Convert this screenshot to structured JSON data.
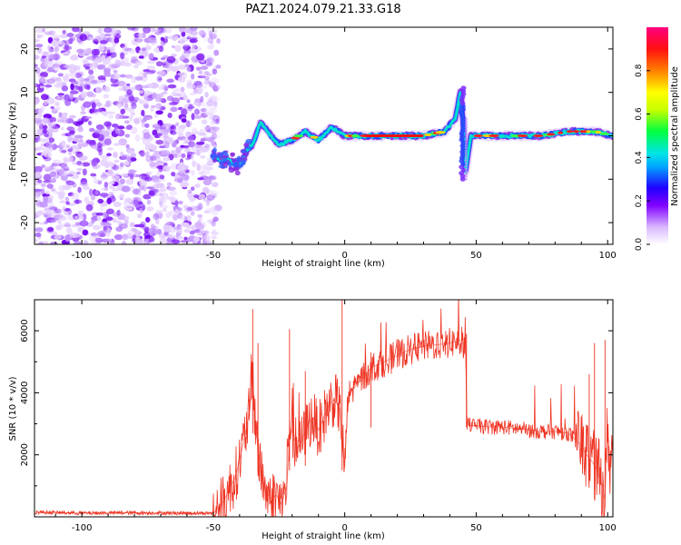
{
  "chart_data": [
    {
      "type": "heatmap",
      "title": "PAZ1.2024.079.21.33.G18",
      "xlabel": "Height of straight line (km)",
      "ylabel": "Frequency (Hz)",
      "xlim": [
        -118,
        102
      ],
      "ylim": [
        -25,
        25
      ],
      "xticks": [
        "-100",
        "-50",
        "0",
        "50",
        "100"
      ],
      "yticks": [
        "-20",
        "-10",
        "0",
        "10",
        "20"
      ],
      "colorbar": {
        "label": "Normalized spectral amplitude",
        "range": [
          0,
          1
        ],
        "ticks": [
          "0.0",
          "0.2",
          "0.4",
          "0.6",
          "0.8"
        ],
        "colors": [
          "#ffffff",
          "#d9b8ff",
          "#8000ff",
          "#0000ff",
          "#00e5ff",
          "#00ff40",
          "#ffff00",
          "#ff8000",
          "#ff0000",
          "#ff0080"
        ]
      },
      "noise_region_x": [
        -118,
        -48
      ],
      "ridge": [
        {
          "x": -50,
          "f": -5
        },
        {
          "x": -45,
          "f": -5.5
        },
        {
          "x": -40,
          "f": -7
        },
        {
          "x": -37,
          "f": -3
        },
        {
          "x": -35,
          "f": -2
        },
        {
          "x": -32,
          "f": 3
        },
        {
          "x": -28,
          "f": 0
        },
        {
          "x": -25,
          "f": -2
        },
        {
          "x": -20,
          "f": -1
        },
        {
          "x": -15,
          "f": 1
        },
        {
          "x": -10,
          "f": -1
        },
        {
          "x": -5,
          "f": 2
        },
        {
          "x": 0,
          "f": 0
        },
        {
          "x": 5,
          "f": 0
        },
        {
          "x": 10,
          "f": 0
        },
        {
          "x": 20,
          "f": 0
        },
        {
          "x": 30,
          "f": 0
        },
        {
          "x": 38,
          "f": 1
        },
        {
          "x": 42,
          "f": 4
        },
        {
          "x": 44,
          "f": 10
        },
        {
          "x": 45,
          "f": 3
        },
        {
          "x": 46,
          "f": -8
        },
        {
          "x": 48,
          "f": 0
        },
        {
          "x": 55,
          "f": 0
        },
        {
          "x": 65,
          "f": 0
        },
        {
          "x": 75,
          "f": 0
        },
        {
          "x": 85,
          "f": 1
        },
        {
          "x": 95,
          "f": 1
        },
        {
          "x": 102,
          "f": 0
        }
      ]
    },
    {
      "type": "line",
      "title": "",
      "xlabel": "Height of straight line (km)",
      "ylabel": "SNR (10 * v/v)",
      "xlim": [
        -118,
        102
      ],
      "ylim": [
        0,
        7000
      ],
      "xticks": [
        "-100",
        "-50",
        "0",
        "50",
        "100"
      ],
      "yticks": [
        "2000",
        "4000",
        "6000"
      ],
      "line_color": "#ee3322",
      "series": [
        {
          "name": "",
          "x": [
            -118,
            -100,
            -80,
            -60,
            -50,
            -46,
            -44,
            -42,
            -40,
            -38,
            -36,
            -35,
            -34,
            -33,
            -32,
            -30,
            -28,
            -26,
            -24,
            -22,
            -21,
            -20,
            -18,
            -16,
            -14,
            -12,
            -10,
            -8,
            -6,
            -4,
            -2,
            -1,
            0,
            1,
            2,
            5,
            10,
            15,
            20,
            25,
            30,
            35,
            40,
            44,
            46,
            46.5,
            48,
            55,
            60,
            65,
            70,
            75,
            80,
            85,
            90,
            92,
            94,
            96,
            98,
            99,
            100,
            101,
            102
          ],
          "y": [
            150,
            120,
            130,
            120,
            120,
            500,
            900,
            1200,
            1800,
            2600,
            3500,
            4500,
            3000,
            2200,
            1500,
            800,
            600,
            700,
            400,
            1000,
            2500,
            2800,
            2200,
            2500,
            3000,
            3200,
            2800,
            3200,
            3600,
            3800,
            3500,
            2500,
            1600,
            3500,
            4000,
            4300,
            4800,
            5000,
            5200,
            5400,
            5500,
            5550,
            5600,
            5700,
            5500,
            3000,
            2950,
            2900,
            2900,
            2850,
            2800,
            2750,
            2750,
            2700,
            2300,
            2000,
            1800,
            1500,
            1000,
            500,
            3000,
            1500,
            2500
          ]
        }
      ]
    }
  ]
}
